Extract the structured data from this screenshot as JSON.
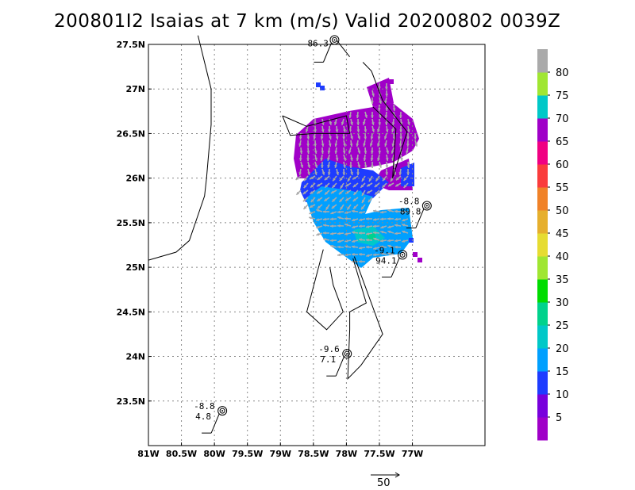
{
  "title": "200801I2 Isaias at 7 km (m/s) Valid 20200802 0039Z",
  "map": {
    "lon_range": [
      -81,
      -75.9
    ],
    "lat_range": [
      23,
      27.5
    ],
    "lon_ticks": [
      {
        "v": -81,
        "label": "81W"
      },
      {
        "v": -80.5,
        "label": "80.5W"
      },
      {
        "v": -80,
        "label": "80W"
      },
      {
        "v": -79.5,
        "label": "79.5W"
      },
      {
        "v": -79,
        "label": "79W"
      },
      {
        "v": -78.5,
        "label": "78.5W"
      },
      {
        "v": -78,
        "label": "78W"
      },
      {
        "v": -77.5,
        "label": "77.5W"
      },
      {
        "v": -77,
        "label": "77W"
      }
    ],
    "lat_ticks": [
      {
        "v": 23.5,
        "label": "23.5N"
      },
      {
        "v": 24,
        "label": "24N"
      },
      {
        "v": 24.5,
        "label": "24.5N"
      },
      {
        "v": 25,
        "label": "25N"
      },
      {
        "v": 25.5,
        "label": "25.5N"
      },
      {
        "v": 26,
        "label": "26N"
      },
      {
        "v": 26.5,
        "label": "26.5N"
      },
      {
        "v": 27,
        "label": "27N"
      },
      {
        "v": 27.5,
        "label": "27.5N"
      }
    ],
    "gridlines": "dotted",
    "stations": [
      {
        "lon": -78.18,
        "lat": 27.55,
        "top": "",
        "bottom": "86.3"
      },
      {
        "lon": -76.78,
        "lat": 25.69,
        "top": "-8.8",
        "bottom": "89.8"
      },
      {
        "lon": -77.15,
        "lat": 25.14,
        "top": "-9.1",
        "bottom": "94.1"
      },
      {
        "lon": -77.99,
        "lat": 24.03,
        "top": "-9.6",
        "bottom": "7.1"
      },
      {
        "lon": -79.88,
        "lat": 23.39,
        "top": "-8.8",
        "bottom": "4.8"
      }
    ],
    "coastlines": [
      [
        [
          -80.25,
          27.6
        ],
        [
          -80.05,
          27.0
        ],
        [
          -80.05,
          26.6
        ],
        [
          -80.12,
          26.0
        ],
        [
          -80.15,
          25.8
        ],
        [
          -80.38,
          25.3
        ],
        [
          -80.58,
          25.17
        ],
        [
          -81.0,
          25.08
        ]
      ],
      [
        [
          -77.75,
          27.3
        ],
        [
          -77.62,
          27.2
        ],
        [
          -77.45,
          26.87
        ],
        [
          -77.08,
          26.52
        ],
        [
          -77.3,
          26.0
        ],
        [
          -77.25,
          26.55
        ],
        [
          -77.6,
          26.8
        ]
      ],
      [
        [
          -78.97,
          26.7
        ],
        [
          -78.6,
          26.58
        ],
        [
          -78.0,
          26.7
        ],
        [
          -77.95,
          26.5
        ],
        [
          -78.5,
          26.5
        ],
        [
          -78.85,
          26.48
        ],
        [
          -78.97,
          26.7
        ]
      ],
      [
        [
          -78.15,
          27.55
        ],
        [
          -77.95,
          27.36
        ]
      ],
      [
        [
          -77.9,
          25.1
        ],
        [
          -77.7,
          24.6
        ],
        [
          -77.95,
          24.5
        ],
        [
          -77.95,
          24.3
        ],
        [
          -77.98,
          23.75
        ],
        [
          -77.78,
          23.9
        ],
        [
          -77.45,
          24.25
        ],
        [
          -77.88,
          25.12
        ]
      ],
      [
        [
          -78.25,
          25.0
        ],
        [
          -78.2,
          24.8
        ],
        [
          -78.05,
          24.5
        ],
        [
          -78.3,
          24.3
        ],
        [
          -78.6,
          24.5
        ],
        [
          -78.35,
          25.2
        ]
      ]
    ],
    "colorbar": {
      "labels": [
        "5",
        "10",
        "15",
        "20",
        "25",
        "30",
        "35",
        "40",
        "45",
        "50",
        "55",
        "60",
        "65",
        "70",
        "75",
        "80"
      ],
      "colors": [
        "#a000c8",
        "#7800dc",
        "#1e3cff",
        "#00a0ff",
        "#00c8c8",
        "#00d28c",
        "#00dc00",
        "#a0e632",
        "#e6dc32",
        "#e6af2d",
        "#f08228",
        "#fa3c3c",
        "#f00082",
        "#a000c8",
        "#00c8c8",
        "#a0e632",
        "#aaaaaa"
      ]
    },
    "reference_vector": {
      "label": "50"
    },
    "wind_field_colors": {
      "purple": "#a000c8",
      "blue": "#1e3cff",
      "light_blue": "#00a0ff",
      "cyan": "#00c8c8",
      "green": "#00d28c",
      "arrow": "#aaaaaa"
    }
  }
}
